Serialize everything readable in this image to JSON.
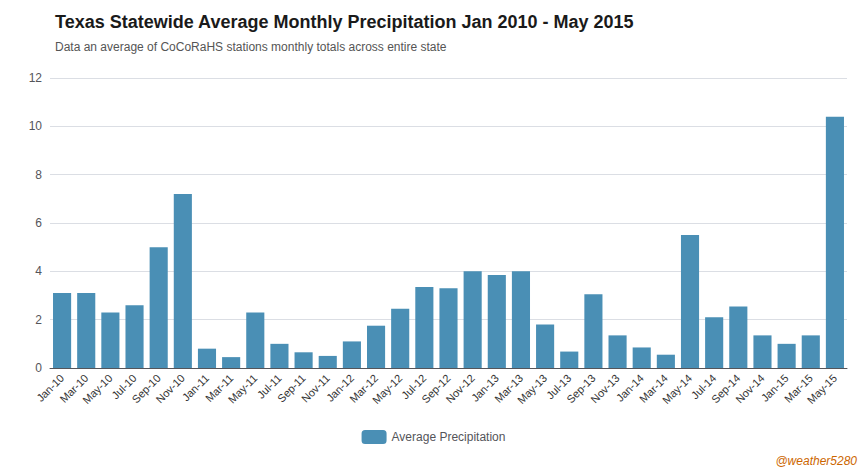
{
  "chart_data": {
    "type": "bar",
    "title": "Texas Statewide Average Monthly Precipitation Jan 2010 - May 2015",
    "subtitle": "Data an average of CoCoRaHS stations monthly totals across entire state",
    "annotations": [
      "@weather5280"
    ],
    "categories": [
      "Jan-10",
      "Mar-10",
      "May-10",
      "Jul-10",
      "Sep-10",
      "Nov-10",
      "Jan-11",
      "Mar-11",
      "May-11",
      "Jul-11",
      "Sep-11",
      "Nov-11",
      "Jan-12",
      "Mar-12",
      "May-12",
      "Jul-12",
      "Sep-12",
      "Nov-12",
      "Jan-13",
      "Mar-13",
      "May-13",
      "Jul-13",
      "Sep-13",
      "Nov-13",
      "Jan-14",
      "Mar-14",
      "May-14",
      "Jul-14",
      "Sep-14",
      "Nov-14",
      "Jan-15",
      "Mar-15",
      "May-15"
    ],
    "series": [
      {
        "name": "Average Precipitation",
        "color": "#4a8fb5",
        "values": [
          3.1,
          3.1,
          2.3,
          2.6,
          5.0,
          7.2,
          0.8,
          0.45,
          2.3,
          1.0,
          0.65,
          0.5,
          1.1,
          1.75,
          2.45,
          3.35,
          3.3,
          4.0,
          3.85,
          4.0,
          1.8,
          0.68,
          3.05,
          1.35,
          0.85,
          0.55,
          5.5,
          2.1,
          2.55,
          1.35,
          1.0,
          1.35,
          10.4
        ]
      }
    ],
    "ylim": [
      0,
      12
    ],
    "yticks": [
      0,
      2,
      4,
      6,
      8,
      10,
      12
    ],
    "grid": true,
    "legend": "bottom"
  }
}
